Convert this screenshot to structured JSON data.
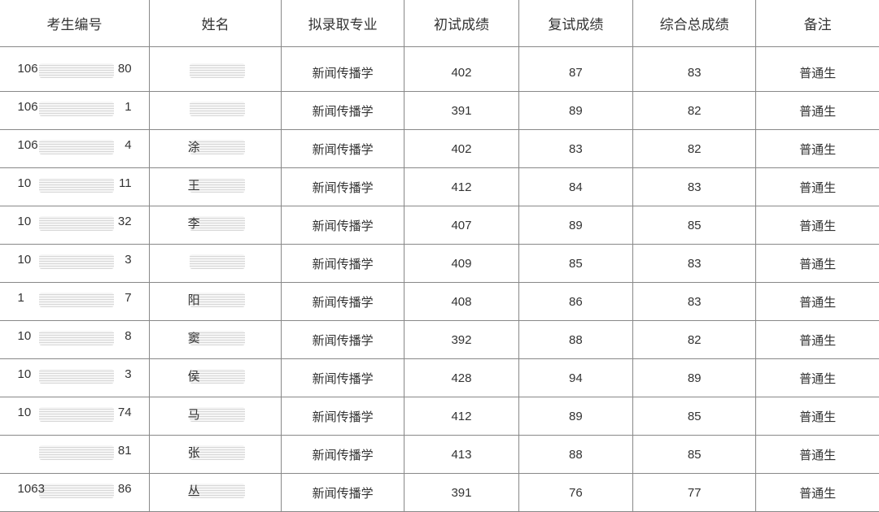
{
  "table": {
    "type": "table",
    "background_color": "#ffffff",
    "border_color": "#888888",
    "header_fontsize": 17,
    "cell_fontsize": 15,
    "text_color": "#333333",
    "columns": [
      {
        "key": "id",
        "label": "考生编号",
        "width": "17%"
      },
      {
        "key": "name",
        "label": "姓名",
        "width": "15%"
      },
      {
        "key": "major",
        "label": "拟录取专业",
        "width": "14%"
      },
      {
        "key": "score1",
        "label": "初试成绩",
        "width": "13%"
      },
      {
        "key": "score2",
        "label": "复试成绩",
        "width": "13%"
      },
      {
        "key": "score3",
        "label": "综合总成绩",
        "width": "14%"
      },
      {
        "key": "remark",
        "label": "备注",
        "width": "14%"
      }
    ],
    "rows": [
      {
        "id_prefix": "106",
        "id_suffix": "80",
        "name_prefix": "",
        "major": "新闻传播学",
        "score1": "402",
        "score2": "87",
        "score3": "83",
        "remark": "普通生"
      },
      {
        "id_prefix": "106",
        "id_suffix": "1",
        "name_prefix": "",
        "major": "新闻传播学",
        "score1": "391",
        "score2": "89",
        "score3": "82",
        "remark": "普通生"
      },
      {
        "id_prefix": "106",
        "id_suffix": "4",
        "name_prefix": "涂",
        "major": "新闻传播学",
        "score1": "402",
        "score2": "83",
        "score3": "82",
        "remark": "普通生"
      },
      {
        "id_prefix": "10",
        "id_suffix": "11",
        "name_prefix": "王",
        "major": "新闻传播学",
        "score1": "412",
        "score2": "84",
        "score3": "83",
        "remark": "普通生"
      },
      {
        "id_prefix": "10",
        "id_suffix": "32",
        "name_prefix": "李",
        "major": "新闻传播学",
        "score1": "407",
        "score2": "89",
        "score3": "85",
        "remark": "普通生"
      },
      {
        "id_prefix": "10",
        "id_suffix": "3",
        "name_prefix": "",
        "major": "新闻传播学",
        "score1": "409",
        "score2": "85",
        "score3": "83",
        "remark": "普通生"
      },
      {
        "id_prefix": "1",
        "id_suffix": "7",
        "name_prefix": "阳",
        "major": "新闻传播学",
        "score1": "408",
        "score2": "86",
        "score3": "83",
        "remark": "普通生"
      },
      {
        "id_prefix": "10",
        "id_suffix": "8",
        "name_prefix": "窦",
        "major": "新闻传播学",
        "score1": "392",
        "score2": "88",
        "score3": "82",
        "remark": "普通生"
      },
      {
        "id_prefix": "10",
        "id_suffix": "3",
        "name_prefix": "侯",
        "major": "新闻传播学",
        "score1": "428",
        "score2": "94",
        "score3": "89",
        "remark": "普通生"
      },
      {
        "id_prefix": "10",
        "id_suffix": "74",
        "name_prefix": "马",
        "major": "新闻传播学",
        "score1": "412",
        "score2": "89",
        "score3": "85",
        "remark": "普通生"
      },
      {
        "id_prefix": "",
        "id_suffix": "81",
        "name_prefix": "张",
        "major": "新闻传播学",
        "score1": "413",
        "score2": "88",
        "score3": "85",
        "remark": "普通生"
      },
      {
        "id_prefix": "1063",
        "id_suffix": "86",
        "name_prefix": "丛",
        "major": "新闻传播学",
        "score1": "391",
        "score2": "76",
        "score3": "77",
        "remark": "普通生"
      }
    ]
  }
}
